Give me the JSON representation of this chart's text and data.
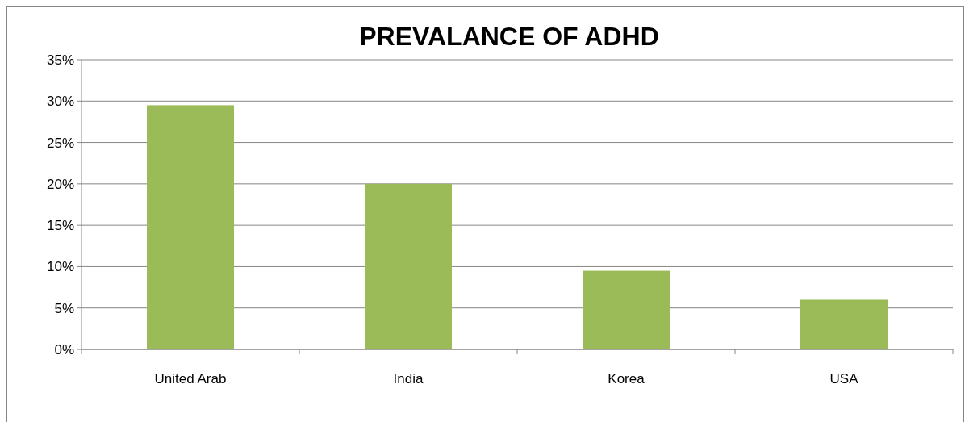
{
  "chart_data": {
    "type": "bar",
    "title": "PREVALANCE OF ADHD",
    "categories": [
      "United Arab",
      "India",
      "Korea",
      "USA"
    ],
    "values": [
      29.5,
      20,
      9.5,
      6
    ],
    "color": "#9bbb59",
    "ylim": [
      0,
      35
    ],
    "yticks": [
      {
        "value": 0,
        "label": "0%"
      },
      {
        "value": 5,
        "label": "5%"
      },
      {
        "value": 10,
        "label": "10%"
      },
      {
        "value": 15,
        "label": "15%"
      },
      {
        "value": 20,
        "label": "20%"
      },
      {
        "value": 25,
        "label": "25%"
      },
      {
        "value": 30,
        "label": "30%"
      },
      {
        "value": 35,
        "label": "35%"
      }
    ],
    "grid": "y"
  }
}
